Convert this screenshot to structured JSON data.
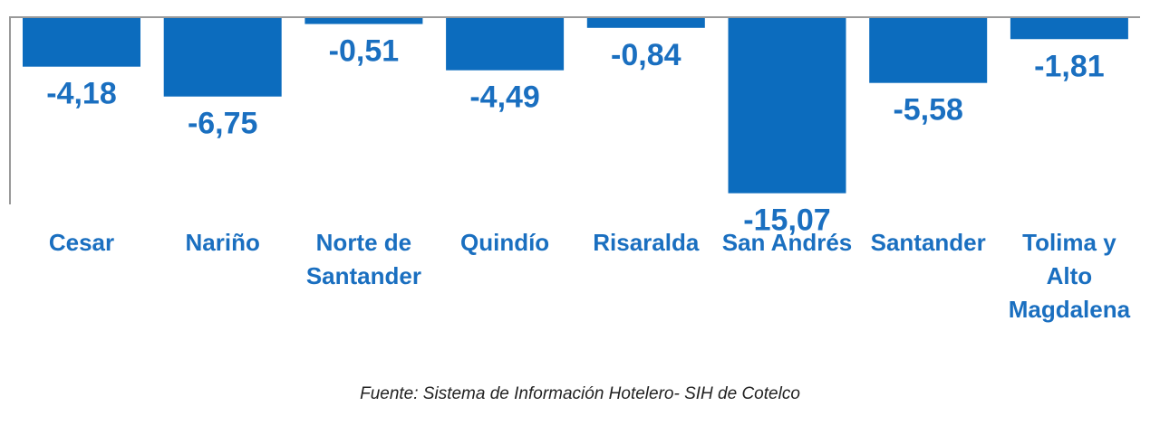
{
  "chart_data": {
    "type": "bar",
    "categories": [
      [
        "Cesar"
      ],
      [
        "Nariño"
      ],
      [
        "Norte de",
        "Santander"
      ],
      [
        "Quindío"
      ],
      [
        "Risaralda"
      ],
      [
        "San Andrés"
      ],
      [
        "Santander"
      ],
      [
        "Tolima y",
        "Alto",
        "Magdalena"
      ]
    ],
    "values": [
      -4.18,
      -6.75,
      -0.51,
      -4.49,
      -0.84,
      -15.07,
      -5.58,
      -1.81
    ],
    "value_labels": [
      "-4,18",
      "-6,75",
      "-0,51",
      "-4,49",
      "-0,84",
      "-15,07",
      "-5,58",
      "-1,81"
    ],
    "ylim": [
      -16.8,
      0
    ],
    "bar_color": "#0c6cbe",
    "label_color": "#1a6fc0",
    "grid": false
  },
  "source_note": "Fuente: Sistema de Información Hotelero- SIH de Cotelco"
}
